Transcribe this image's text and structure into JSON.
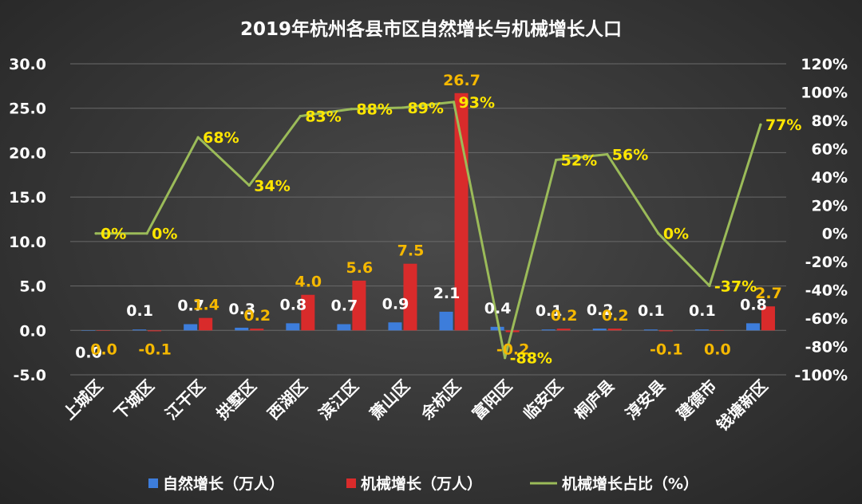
{
  "chart_data": {
    "type": "bar+line",
    "title": "2019年杭州各县市区自然增长与机械增长人口",
    "categories": [
      "上城区",
      "下城区",
      "江干区",
      "拱墅区",
      "西湖区",
      "滨江区",
      "萧山区",
      "余杭区",
      "富阳区",
      "临安区",
      "桐庐县",
      "淳安县",
      "建德市",
      "钱塘新区"
    ],
    "series": [
      {
        "name": "自然增长（万人）",
        "type": "bar",
        "axis": "left",
        "color": "#3d7ddb",
        "values": [
          0.0,
          0.1,
          0.7,
          0.3,
          0.8,
          0.7,
          0.9,
          2.1,
          0.4,
          0.1,
          0.2,
          0.1,
          0.1,
          0.8
        ],
        "labels": [
          "0.0",
          "0.1",
          "0.7",
          "0.3",
          "0.8",
          "0.7",
          "0.9",
          "2.1",
          "0.4",
          "0.1",
          "0.2",
          "0.1",
          "0.1",
          "0.8"
        ]
      },
      {
        "name": "机械增长（万人）",
        "type": "bar",
        "axis": "left",
        "color": "#d92b2b",
        "values": [
          0.0,
          -0.1,
          1.4,
          0.2,
          4.0,
          5.6,
          7.5,
          26.7,
          -0.2,
          0.2,
          0.2,
          -0.1,
          0.0,
          2.7
        ],
        "labels": [
          "0.0",
          "-0.1",
          "1.4",
          "0.2",
          "4.0",
          "5.6",
          "7.5",
          "26.7",
          "-0.2",
          "0.2",
          "0.2",
          "-0.1",
          "0.0",
          "2.7"
        ]
      },
      {
        "name": "机械增长占比（%）",
        "type": "line",
        "axis": "right",
        "color": "#9bbb59",
        "values": [
          0,
          0,
          68,
          34,
          83,
          88,
          89,
          93,
          -88,
          52,
          56,
          0,
          -37,
          77
        ],
        "labels": [
          "0%",
          "0%",
          "68%",
          "34%",
          "83%",
          "88%",
          "89%",
          "93%",
          "-88%",
          "52%",
          "56%",
          "0%",
          "-37%",
          "77%"
        ]
      }
    ],
    "y_left": {
      "min": -5,
      "max": 30,
      "step": 5,
      "ticks": [
        "-5.0",
        "0.0",
        "5.0",
        "10.0",
        "15.0",
        "20.0",
        "25.0",
        "30.0"
      ]
    },
    "y_right": {
      "min": -100,
      "max": 120,
      "step": 20,
      "ticks": [
        "-100%",
        "-80%",
        "-60%",
        "-40%",
        "-20%",
        "0%",
        "20%",
        "40%",
        "60%",
        "80%",
        "100%",
        "120%"
      ]
    },
    "grid": true,
    "legend_position": "bottom"
  }
}
